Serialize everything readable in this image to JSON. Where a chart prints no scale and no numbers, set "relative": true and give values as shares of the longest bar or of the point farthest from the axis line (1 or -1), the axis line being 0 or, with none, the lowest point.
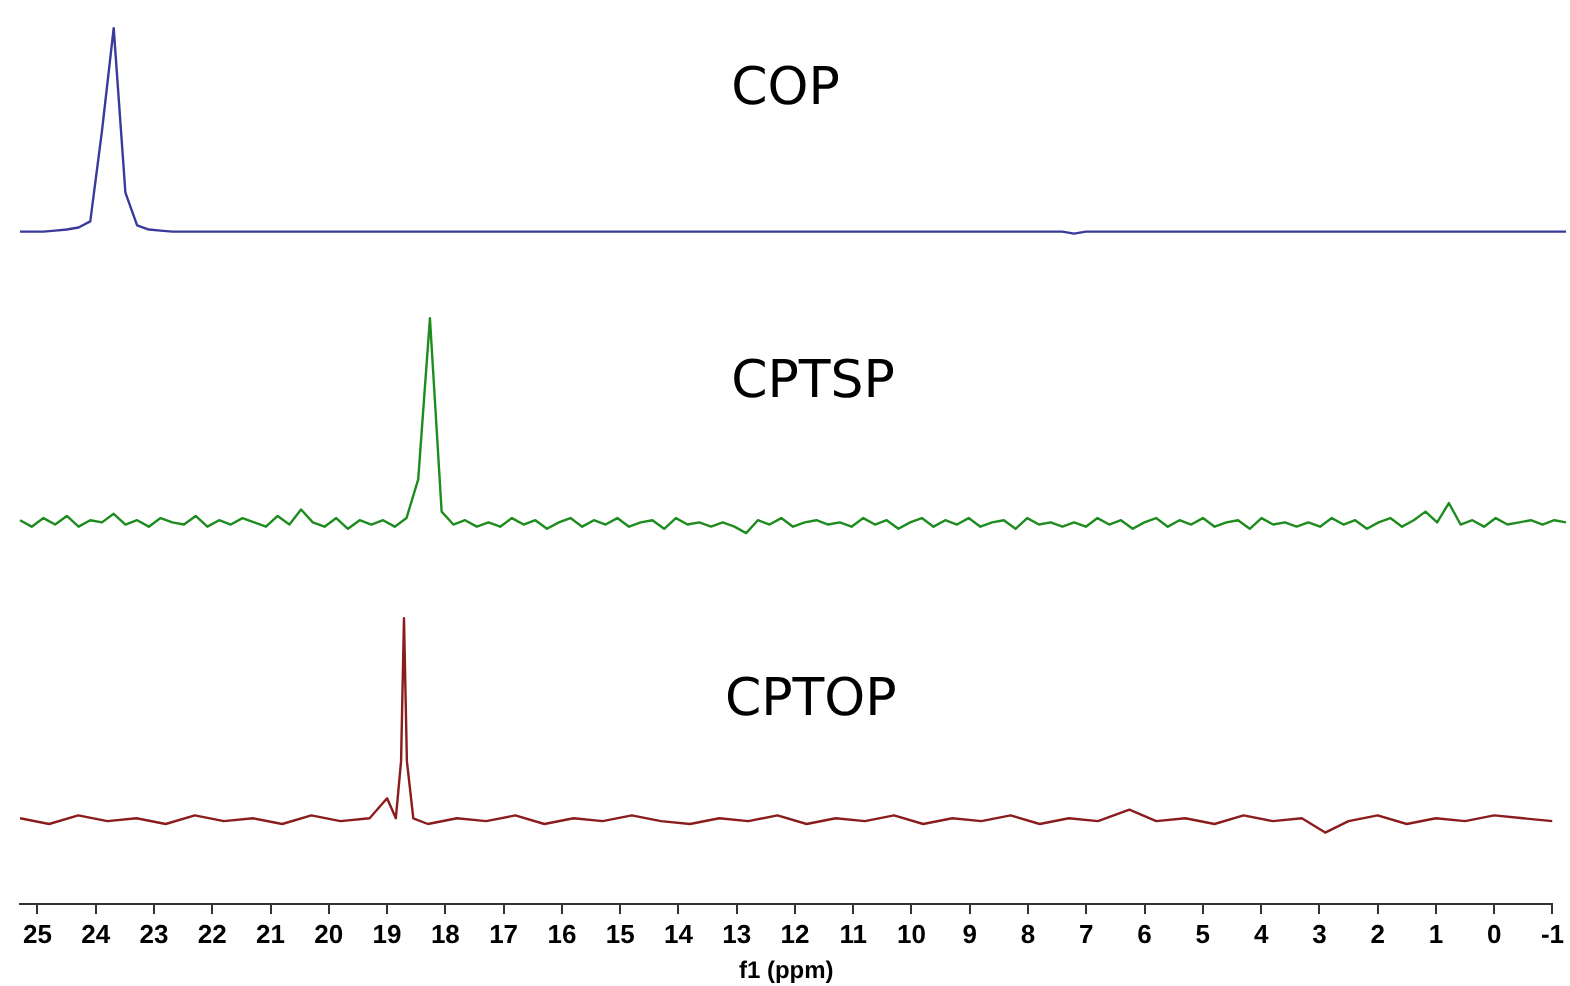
{
  "chart_data": [
    {
      "type": "line",
      "relative": true,
      "marker": "none",
      "grid": false,
      "legend": false,
      "tick_labels": false,
      "categories": [
        null,
        null,
        null,
        null,
        null,
        null,
        null,
        null,
        null,
        null,
        null,
        null,
        null,
        null,
        null,
        null,
        null,
        null,
        null,
        null,
        null,
        null,
        null,
        null,
        null,
        null,
        null,
        null,
        null,
        null,
        null,
        null,
        null,
        null,
        null,
        null,
        null,
        null,
        null,
        null,
        null,
        null,
        null,
        null,
        null,
        null,
        null,
        null,
        null,
        null,
        null,
        null,
        null,
        null,
        null,
        null,
        null,
        null,
        null,
        null,
        null,
        null,
        null,
        null,
        null,
        null,
        null,
        null,
        null,
        null,
        null,
        null,
        null,
        null,
        null,
        null,
        null,
        null,
        null,
        null,
        null,
        null,
        null,
        null,
        null,
        null,
        null,
        null,
        null,
        null,
        null,
        null,
        null,
        null,
        null,
        null,
        null,
        null,
        null,
        null,
        null,
        null,
        null,
        null,
        null,
        null,
        null,
        null,
        null,
        null,
        null,
        null,
        null,
        null,
        null,
        null,
        null,
        null,
        null,
        null,
        null,
        null,
        null,
        null,
        null,
        null,
        null,
        null,
        null,
        null,
        null,
        null,
        null
      ],
      "series": [
        {
          "name": "COP",
          "color": "#3a3a9a",
          "values": [
            0.01,
            0.01,
            0.01,
            0.015,
            0.02,
            0.03,
            0.06,
            0.5,
            1,
            0.2,
            0.04,
            0.02,
            0.015,
            0.01,
            0.01,
            0.01,
            0.01,
            0.01,
            0.01,
            0.01,
            0.01,
            0.01,
            0.01,
            0.01,
            0.01,
            0.01,
            0.01,
            0.01,
            0.01,
            0.01,
            0.01,
            0.01,
            0.01,
            0.01,
            0.01,
            0.01,
            0.01,
            0.01,
            0.01,
            0.01,
            0.01,
            0.01,
            0.01,
            0.01,
            0.01,
            0.01,
            0.01,
            0.01,
            0.01,
            0.01,
            0.01,
            0.01,
            0.01,
            0.01,
            0.01,
            0.01,
            0.01,
            0.01,
            0.01,
            0.01,
            0.01,
            0.01,
            0.01,
            0.01,
            0.01,
            0.01,
            0.01,
            0.01,
            0.01,
            0.01,
            0.01,
            0.01,
            0.01,
            0.01,
            0.01,
            0.01,
            0.01,
            0.01,
            0.01,
            0.01,
            0.01,
            0.01,
            0.01,
            0.01,
            0.01,
            0.01,
            0.01,
            0.01,
            0.01,
            0.01,
            0,
            0.01,
            0.01,
            0.01,
            0.01,
            0.01,
            0.01,
            0.01,
            0.01,
            0.01,
            0.01,
            0.01,
            0.01,
            0.01,
            0.01,
            0.01,
            0.01,
            0.01,
            0.01,
            0.01,
            0.01,
            0.01,
            0.01,
            0.01,
            0.01,
            0.01,
            0.01,
            0.01,
            0.01,
            0.01,
            0.01,
            0.01,
            0.01,
            0.01,
            0.01,
            0.01,
            0.01,
            0.01,
            0.01,
            0.01,
            0.01,
            0.01,
            0.01
          ]
        }
      ]
    },
    {
      "type": "line",
      "relative": true,
      "marker": "none",
      "grid": false,
      "legend": false,
      "tick_labels": false,
      "categories": [
        null,
        null,
        null,
        null,
        null,
        null,
        null,
        null,
        null,
        null,
        null,
        null,
        null,
        null,
        null,
        null,
        null,
        null,
        null,
        null,
        null,
        null,
        null,
        null,
        null,
        null,
        null,
        null,
        null,
        null,
        null,
        null,
        null,
        null,
        null,
        null,
        null,
        null,
        null,
        null,
        null,
        null,
        null,
        null,
        null,
        null,
        null,
        null,
        null,
        null,
        null,
        null,
        null,
        null,
        null,
        null,
        null,
        null,
        null,
        null,
        null,
        null,
        null,
        null,
        null,
        null,
        null,
        null,
        null,
        null,
        null,
        null,
        null,
        null,
        null,
        null,
        null,
        null,
        null,
        null,
        null,
        null,
        null,
        null,
        null,
        null,
        null,
        null,
        null,
        null,
        null,
        null,
        null,
        null,
        null,
        null,
        null,
        null,
        null,
        null,
        null,
        null,
        null,
        null,
        null,
        null,
        null,
        null,
        null,
        null,
        null,
        null,
        null,
        null,
        null,
        null,
        null,
        null,
        null,
        null,
        null,
        null,
        null,
        null,
        null,
        null,
        null,
        null,
        null,
        null,
        null,
        null,
        null
      ],
      "series": [
        {
          "name": "CPTSP",
          "color": "#1e8c1e",
          "values": [
            0.06,
            0.03,
            0.07,
            0.04,
            0.08,
            0.03,
            0.06,
            0.05,
            0.09,
            0.04,
            0.06,
            0.03,
            0.07,
            0.05,
            0.04,
            0.08,
            0.03,
            0.06,
            0.04,
            0.07,
            0.05,
            0.03,
            0.08,
            0.04,
            0.11,
            0.05,
            0.03,
            0.07,
            0.02,
            0.06,
            0.04,
            0.06,
            0.03,
            0.07,
            0.25,
            1,
            0.1,
            0.04,
            0.06,
            0.03,
            0.05,
            0.03,
            0.07,
            0.04,
            0.06,
            0.02,
            0.05,
            0.07,
            0.03,
            0.06,
            0.04,
            0.07,
            0.03,
            0.05,
            0.06,
            0.02,
            0.07,
            0.04,
            0.05,
            0.03,
            0.05,
            0.03,
            0,
            0.06,
            0.04,
            0.07,
            0.03,
            0.05,
            0.06,
            0.04,
            0.05,
            0.03,
            0.07,
            0.04,
            0.06,
            0.02,
            0.05,
            0.07,
            0.03,
            0.06,
            0.04,
            0.07,
            0.03,
            0.05,
            0.06,
            0.02,
            0.07,
            0.04,
            0.05,
            0.03,
            0.05,
            0.03,
            0.07,
            0.04,
            0.06,
            0.02,
            0.05,
            0.07,
            0.03,
            0.06,
            0.04,
            0.07,
            0.03,
            0.05,
            0.06,
            0.02,
            0.07,
            0.04,
            0.05,
            0.03,
            0.05,
            0.03,
            0.07,
            0.04,
            0.06,
            0.02,
            0.05,
            0.07,
            0.03,
            0.06,
            0.1,
            0.05,
            0.14,
            0.04,
            0.06,
            0.03,
            0.07,
            0.04,
            0.05,
            0.06,
            0.04,
            0.06,
            0.05
          ]
        }
      ]
    },
    {
      "type": "line",
      "relative": true,
      "marker": "none",
      "grid": false,
      "legend": false,
      "tick_labels": "x",
      "xlim": [
        25.3,
        -1
      ],
      "xticks": [
        25,
        24,
        23,
        22,
        21,
        20,
        19,
        18,
        17,
        16,
        15,
        14,
        13,
        12,
        11,
        10,
        9,
        8,
        7,
        6,
        5,
        4,
        3,
        2,
        1,
        0,
        -1
      ],
      "xlabel": "f1 (ppm)",
      "x": [
        25.3,
        24.8,
        24.3,
        23.8,
        23.3,
        22.8,
        22.3,
        21.8,
        21.3,
        20.8,
        20.3,
        19.8,
        19.3,
        19.0,
        18.85,
        18.76,
        18.71,
        18.66,
        18.55,
        18.3,
        17.8,
        17.3,
        16.8,
        16.3,
        15.8,
        15.3,
        14.8,
        14.3,
        13.8,
        13.3,
        12.8,
        12.3,
        11.8,
        11.3,
        10.8,
        10.3,
        9.8,
        9.3,
        8.8,
        8.3,
        7.8,
        7.3,
        6.8,
        6.26,
        5.8,
        5.3,
        4.8,
        4.3,
        3.8,
        3.3,
        2.9,
        2.5,
        2.0,
        1.5,
        1.0,
        0.5,
        0,
        -0.5,
        -1
      ],
      "series": [
        {
          "name": "CPTOP",
          "color": "#8b1c1c",
          "values": [
            0.3,
            0.28,
            0.31,
            0.29,
            0.3,
            0.28,
            0.31,
            0.29,
            0.3,
            0.28,
            0.31,
            0.29,
            0.3,
            0.37,
            0.3,
            0.5,
            1,
            0.5,
            0.3,
            0.28,
            0.3,
            0.29,
            0.31,
            0.28,
            0.3,
            0.29,
            0.31,
            0.29,
            0.28,
            0.3,
            0.29,
            0.31,
            0.28,
            0.3,
            0.29,
            0.31,
            0.28,
            0.3,
            0.29,
            0.31,
            0.28,
            0.3,
            0.29,
            0.33,
            0.29,
            0.3,
            0.28,
            0.31,
            0.29,
            0.3,
            0.25,
            0.29,
            0.31,
            0.28,
            0.3,
            0.29,
            0.31,
            0.3,
            0.29
          ]
        }
      ]
    }
  ]
}
